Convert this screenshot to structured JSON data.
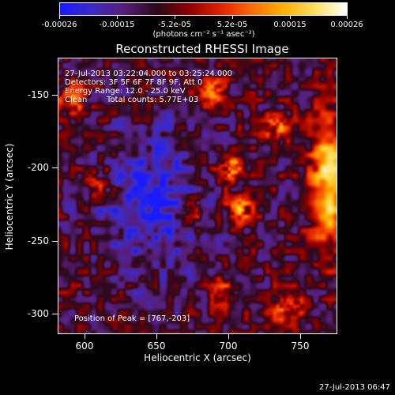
{
  "colorbar": {
    "tick_labels": [
      "-0.00026",
      "-0.00015",
      "-5.2e-05",
      "5.2e-05",
      "0.00015",
      "0.00026"
    ],
    "units": "(photons cm⁻² s⁻¹ asec⁻²)",
    "colors": [
      "#1a1aff",
      "#3c2cc8",
      "#5a1e78",
      "#2a0a1e",
      "#8b0000",
      "#e02000",
      "#ff6a00",
      "#ffb000",
      "#ffe060",
      "#ffffff"
    ]
  },
  "title": "Reconstructed RHESSI Image",
  "info": {
    "time_range": "27-Jul-2013 03:22:04.000 to 03:25:24.000",
    "detectors": "Detectors: 3F 5F 6F 7F 8F 9F, Att 0",
    "energy_range": "Energy Range: 12.0 - 25.0 keV",
    "clean": "Clean",
    "total_counts": "Total counts: 5.77E+03",
    "peak_position": "Position of Peak = [767,-203]"
  },
  "axes": {
    "xlabel": "Heliocentric X (arcsec)",
    "ylabel": "Heliocentric Y (arcsec)",
    "x_ticks": [
      "600",
      "650",
      "700",
      "750"
    ],
    "y_ticks": [
      "-150",
      "-200",
      "-250",
      "-300"
    ],
    "x_range": [
      583,
      777
    ],
    "y_range": [
      -322,
      -130
    ]
  },
  "timestamp": "27-Jul-2013 06:47"
}
